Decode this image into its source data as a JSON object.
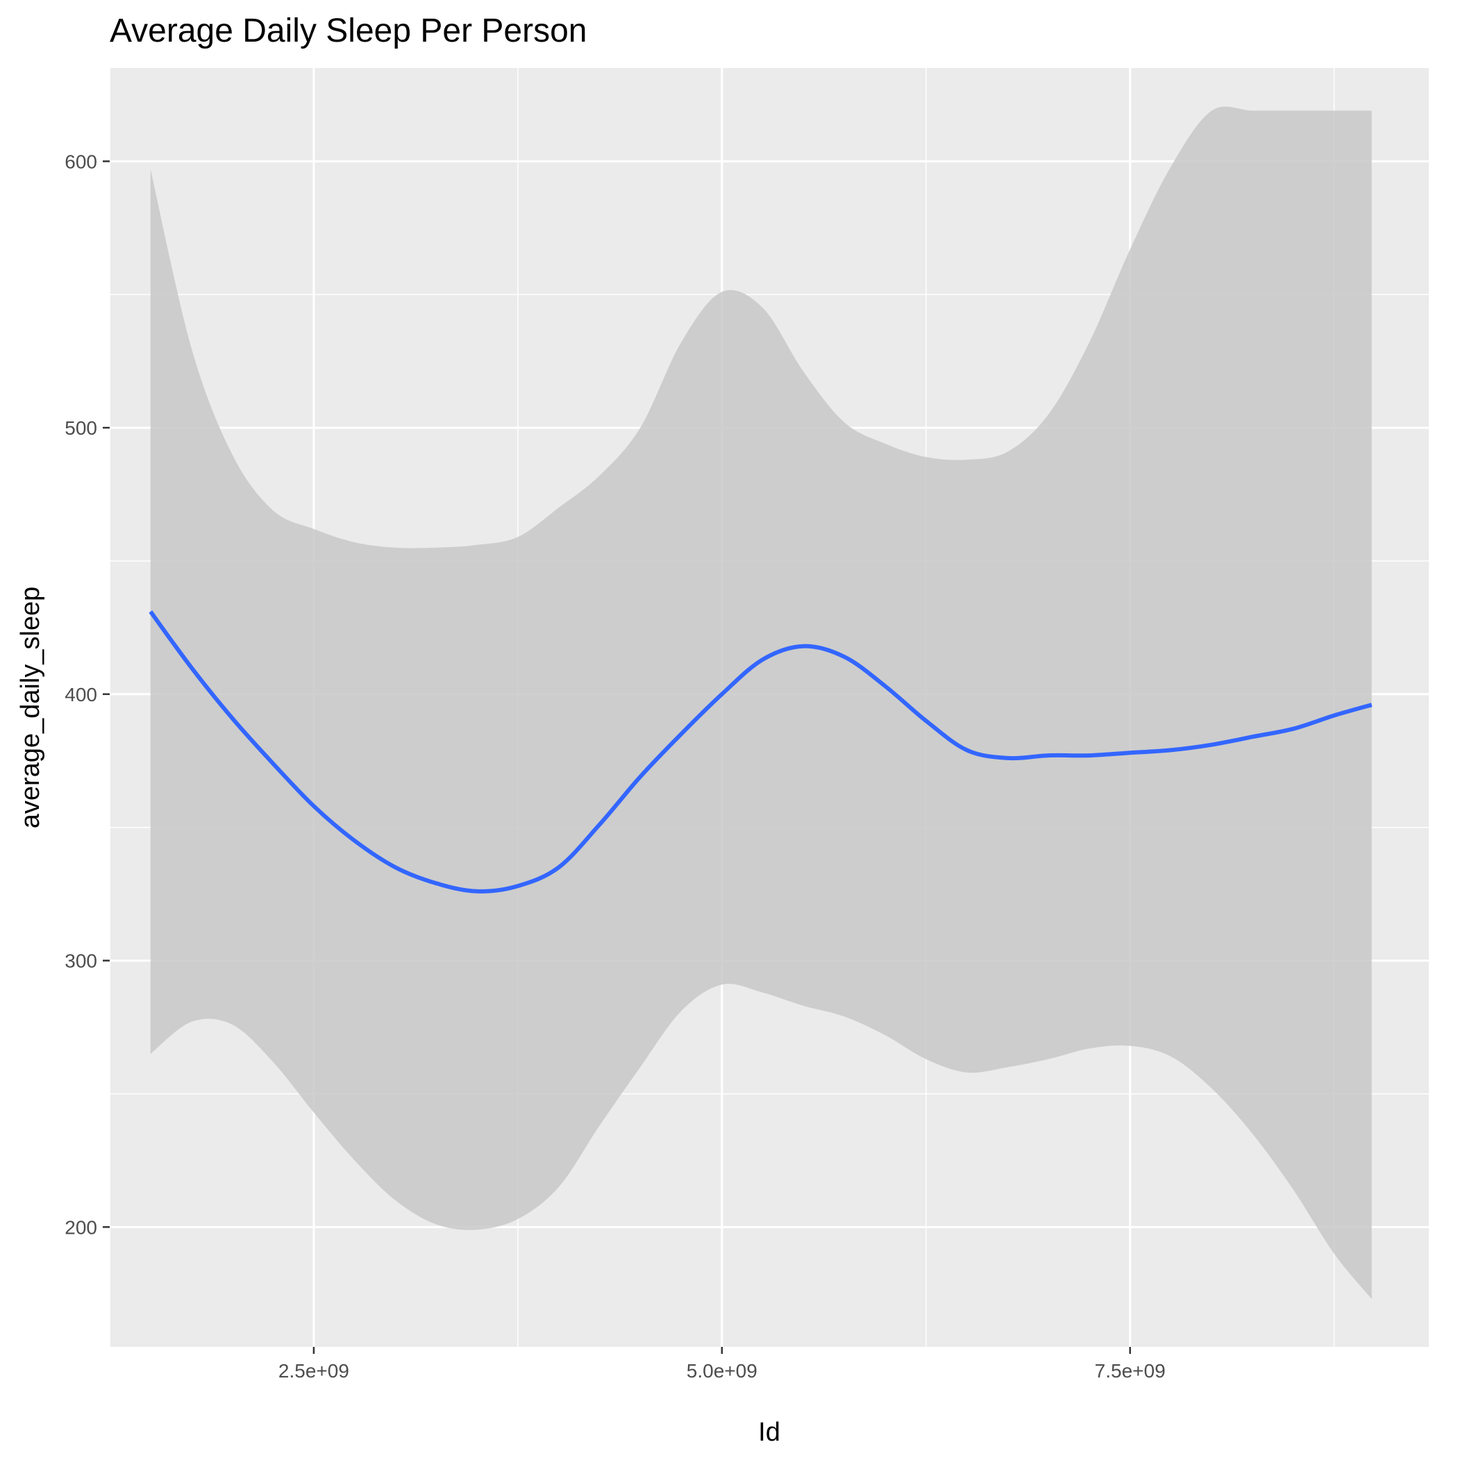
{
  "chart_data": {
    "type": "line",
    "title": "Average Daily Sleep Per Person",
    "xlabel": "Id",
    "ylabel": "average_daily_sleep",
    "xlim": [
      1250000000.0,
      9330000000.0
    ],
    "ylim": [
      155,
      635
    ],
    "x_ticks": [
      {
        "value": 2500000000.0,
        "label": "2.5e+09"
      },
      {
        "value": 5000000000.0,
        "label": "5.0e+09"
      },
      {
        "value": 7500000000.0,
        "label": "7.5e+09"
      }
    ],
    "y_ticks": [
      {
        "value": 200,
        "label": "200"
      },
      {
        "value": 300,
        "label": "300"
      },
      {
        "value": 400,
        "label": "400"
      },
      {
        "value": 500,
        "label": "500"
      },
      {
        "value": 600,
        "label": "600"
      }
    ],
    "grid": true,
    "legend": "none",
    "colors": {
      "panel_background": "#ebebeb",
      "grid": "#ffffff",
      "line": "#3366ff",
      "ribbon": "#c8c8c8"
    },
    "series": [
      {
        "style": "smooth",
        "x": [
          1500000000.0,
          1750000000.0,
          2000000000.0,
          2250000000.0,
          2500000000.0,
          2750000000.0,
          3000000000.0,
          3250000000.0,
          3500000000.0,
          3750000000.0,
          4000000000.0,
          4250000000.0,
          4500000000.0,
          4750000000.0,
          5000000000.0,
          5250000000.0,
          5500000000.0,
          5750000000.0,
          6000000000.0,
          6250000000.0,
          6500000000.0,
          6750000000.0,
          7000000000.0,
          7250000000.0,
          7500000000.0,
          7750000000.0,
          8000000000.0,
          8250000000.0,
          8500000000.0,
          8750000000.0,
          8980000000.0
        ],
        "y": [
          431,
          410,
          391,
          374,
          358,
          345,
          335,
          329,
          326,
          328,
          335,
          351,
          369,
          385,
          400,
          413,
          418,
          414,
          403,
          390,
          379,
          376,
          377,
          377,
          378,
          379,
          381,
          384,
          387,
          392,
          396
        ],
        "ymin": [
          265,
          277,
          276,
          262,
          243,
          225,
          210,
          201,
          199,
          203,
          215,
          238,
          260,
          281,
          291,
          288,
          283,
          279,
          272,
          263,
          258,
          260,
          263,
          267,
          268,
          264,
          252,
          235,
          214,
          190,
          173
        ],
        "ymax": [
          597,
          530,
          490,
          469,
          462,
          457,
          455,
          455,
          456,
          459,
          470,
          482,
          500,
          532,
          551,
          545,
          521,
          502,
          494,
          489,
          488,
          491,
          505,
          532,
          567,
          598,
          619,
          619,
          619,
          619,
          619
        ]
      }
    ]
  }
}
